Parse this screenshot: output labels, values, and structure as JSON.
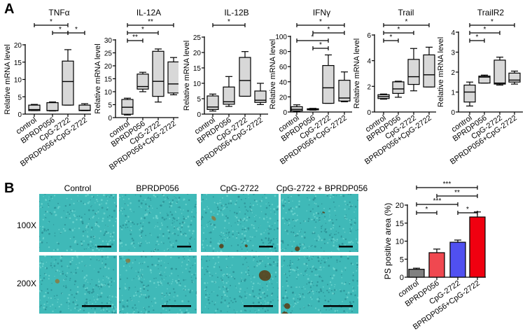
{
  "panels": {
    "a": "A",
    "b": "B"
  },
  "groups": [
    "control",
    "BPRDP056",
    "CpG-2722",
    "BPRDP056+CpG-2722"
  ],
  "chart_data": [
    {
      "type": "box",
      "title": "TNFα",
      "ylabel": "Relative mRNA level",
      "ylim": [
        0,
        20
      ],
      "yticks": [
        0,
        5,
        10,
        15,
        20
      ],
      "categories": [
        "control",
        "BPRDP056",
        "CpG-2722",
        "BPRDP056+CpG-2722"
      ],
      "boxes": [
        {
          "min": 1.0,
          "q1": 1.0,
          "median": 1.3,
          "q3": 2.6,
          "max": 2.8
        },
        {
          "min": 0.9,
          "q1": 1.0,
          "median": 1.0,
          "q3": 3.3,
          "max": 3.5
        },
        {
          "min": 2.6,
          "q1": 2.6,
          "median": 9.4,
          "q3": 15.3,
          "max": 18.6
        },
        {
          "min": 1.0,
          "q1": 1.0,
          "median": 1.1,
          "q3": 2.6,
          "max": 3.0
        }
      ],
      "significance": [
        {
          "from": 0,
          "to": 2,
          "label": "*"
        },
        {
          "from": 1,
          "to": 2,
          "label": "*"
        },
        {
          "from": 2,
          "to": 3,
          "label": "*"
        }
      ]
    },
    {
      "type": "box",
      "title": "IL-12A",
      "ylabel": "Relative mRNA level",
      "ylim": [
        0,
        30
      ],
      "yticks": [
        0,
        5,
        10,
        15,
        20,
        25,
        30
      ],
      "categories": [
        "control",
        "BPRDP056",
        "CpG-2722",
        "BPRDP056+CpG-2722"
      ],
      "boxes": [
        {
          "min": 1.0,
          "q1": 1.3,
          "median": 4.0,
          "q3": 7.0,
          "max": 7.5
        },
        {
          "min": 10.0,
          "q1": 11.0,
          "median": 12.0,
          "q3": 16.8,
          "max": 17.5
        },
        {
          "min": 6.0,
          "q1": 8.2,
          "median": 14.0,
          "q3": 25.6,
          "max": 26.5
        },
        {
          "min": 8.8,
          "q1": 9.5,
          "median": 13.0,
          "q3": 21.5,
          "max": 23.2
        }
      ],
      "significance": [
        {
          "from": 0,
          "to": 1,
          "label": "**"
        },
        {
          "from": 0,
          "to": 2,
          "label": "*"
        },
        {
          "from": 0,
          "to": 3,
          "label": "**"
        }
      ]
    },
    {
      "type": "box",
      "title": "IL-12B",
      "ylabel": "Relative mRNA level",
      "ylim": [
        0,
        25
      ],
      "yticks": [
        0,
        5,
        10,
        15,
        20,
        25
      ],
      "categories": [
        "control",
        "BPRDP056",
        "CpG-2722",
        "BPRDP056+CpG-2722"
      ],
      "boxes": [
        {
          "min": 1.0,
          "q1": 1.5,
          "median": 2.3,
          "q3": 5.9,
          "max": 6.5
        },
        {
          "min": 2.5,
          "q1": 3.2,
          "median": 4.0,
          "q3": 8.8,
          "max": 12.2
        },
        {
          "min": 5.8,
          "q1": 5.8,
          "median": 10.9,
          "q3": 18.4,
          "max": 20.3
        },
        {
          "min": 3.1,
          "q1": 3.8,
          "median": 4.5,
          "q3": 7.5,
          "max": 10.0
        }
      ],
      "significance": [
        {
          "from": 0,
          "to": 2,
          "label": "*"
        }
      ]
    },
    {
      "type": "box",
      "title": "IFNγ",
      "ylabel": "Relative mRNA level",
      "ylim": [
        0,
        100
      ],
      "yticks": [
        0,
        20,
        40,
        60,
        80,
        100
      ],
      "categories": [
        "control",
        "BPRDP056",
        "CpG-2722",
        "BPRDP056+CpG-2722"
      ],
      "boxes": [
        {
          "min": 0.5,
          "q1": 1.5,
          "median": 3.5,
          "q3": 7.0,
          "max": 9.5
        },
        {
          "min": 2.5,
          "q1": 2.8,
          "median": 3.5,
          "q3": 4.3,
          "max": 4.8
        },
        {
          "min": 11.5,
          "q1": 11.5,
          "median": 32.0,
          "q3": 61.5,
          "max": 75.5
        },
        {
          "min": 13.5,
          "q1": 14.5,
          "median": 18.5,
          "q3": 42.0,
          "max": 53.0
        }
      ],
      "significance": [
        {
          "from": 1,
          "to": 2,
          "label": "*"
        },
        {
          "from": 1,
          "to": 3,
          "label": "*"
        },
        {
          "from": 0,
          "to": 2,
          "label": "*"
        },
        {
          "from": 0,
          "to": 3,
          "label": "*"
        }
      ]
    },
    {
      "type": "box",
      "title": "Trail",
      "ylabel": "Relative mRNA level",
      "ylim": [
        0,
        6
      ],
      "yticks": [
        0,
        2,
        4,
        6
      ],
      "categories": [
        "control",
        "BPRDP056",
        "CpG-2722",
        "BPRDP056+CpG-2722"
      ],
      "boxes": [
        {
          "min": 1.0,
          "q1": 1.05,
          "median": 1.2,
          "q3": 1.35,
          "max": 1.4
        },
        {
          "min": 1.15,
          "q1": 1.45,
          "median": 1.8,
          "q3": 2.35,
          "max": 2.4
        },
        {
          "min": 1.65,
          "q1": 2.15,
          "median": 2.75,
          "q3": 4.1,
          "max": 4.95
        },
        {
          "min": 1.95,
          "q1": 1.95,
          "median": 2.9,
          "q3": 4.45,
          "max": 5.05
        }
      ],
      "significance": [
        {
          "from": 0,
          "to": 1,
          "label": "*"
        },
        {
          "from": 0,
          "to": 2,
          "label": "*"
        },
        {
          "from": 0,
          "to": 3,
          "label": "*"
        }
      ]
    },
    {
      "type": "box",
      "title": "TrailR2",
      "ylabel": "Relative mRNA level",
      "ylim": [
        0,
        4
      ],
      "yticks": [
        0,
        1,
        2,
        3,
        4
      ],
      "categories": [
        "control",
        "BPRDP056",
        "CpG-2722",
        "BPRDP056+CpG-2722"
      ],
      "boxes": [
        {
          "min": 0.3,
          "q1": 0.5,
          "median": 1.0,
          "q3": 1.35,
          "max": 1.5
        },
        {
          "min": 1.45,
          "q1": 1.45,
          "median": 1.75,
          "q3": 1.8,
          "max": 1.85
        },
        {
          "min": 1.35,
          "q1": 1.4,
          "median": 1.45,
          "q3": 2.6,
          "max": 2.75
        },
        {
          "min": 1.4,
          "q1": 1.5,
          "median": 1.6,
          "q3": 1.95,
          "max": 2.05
        }
      ],
      "significance": [
        {
          "from": 0,
          "to": 1,
          "label": "*"
        },
        {
          "from": 0,
          "to": 2,
          "label": "*"
        },
        {
          "from": 0,
          "to": 3,
          "label": "*"
        }
      ]
    },
    {
      "type": "bar",
      "title": "",
      "ylabel": "PS positive area (%)",
      "ylim": [
        0,
        20
      ],
      "yticks": [
        0,
        5,
        10,
        15,
        20
      ],
      "categories": [
        "control",
        "BPRDP056",
        "CpG-2722",
        "BPRDP056+CpG-2722"
      ],
      "values": [
        2.2,
        6.8,
        9.7,
        16.7
      ],
      "errors": [
        0.3,
        1.0,
        0.6,
        1.4
      ],
      "colors": [
        "#808080",
        "#f04850",
        "#5050f0",
        "#f00010"
      ],
      "significance": [
        {
          "from": 0,
          "to": 1,
          "label": "*"
        },
        {
          "from": 0,
          "to": 2,
          "label": "***"
        },
        {
          "from": 0,
          "to": 3,
          "label": "***"
        },
        {
          "from": 2,
          "to": 3,
          "label": "*"
        },
        {
          "from": 1,
          "to": 3,
          "label": "**"
        }
      ]
    }
  ],
  "micrographs": {
    "columns": [
      "Control",
      "BPRDP056",
      "CpG-2722",
      "CpG-2722 + BPRDP056"
    ],
    "rows": [
      "100X",
      "200X"
    ]
  }
}
